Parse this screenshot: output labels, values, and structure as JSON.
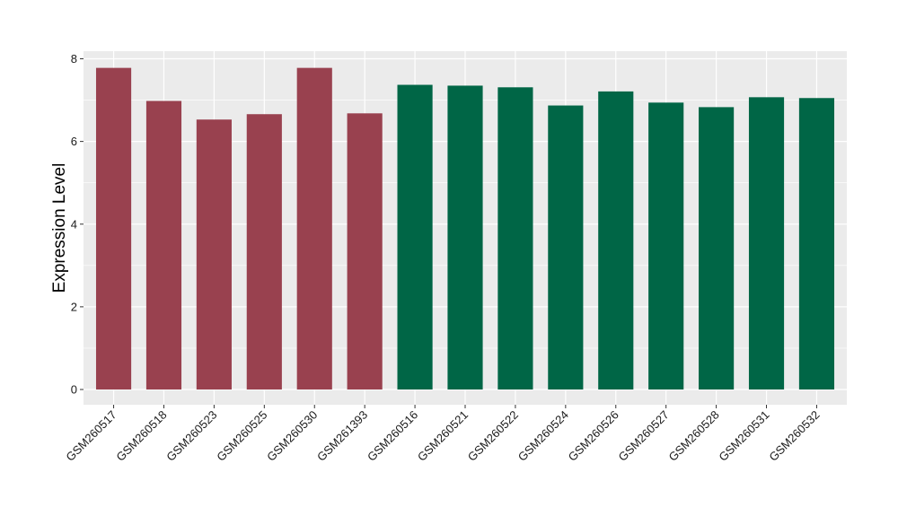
{
  "chart_data": {
    "type": "bar",
    "title": "",
    "xlabel": "",
    "ylabel": "Expression Level",
    "ylim": [
      0,
      8
    ],
    "yticks": [
      0,
      2,
      4,
      6,
      8
    ],
    "grid": true,
    "legend": "none",
    "categories": [
      "GSM260517",
      "GSM260518",
      "GSM260523",
      "GSM260525",
      "GSM260530",
      "GSM261393",
      "GSM260516",
      "GSM260521",
      "GSM260522",
      "GSM260524",
      "GSM260526",
      "GSM260527",
      "GSM260528",
      "GSM260531",
      "GSM260532"
    ],
    "values": [
      7.78,
      6.98,
      6.53,
      6.66,
      7.78,
      6.68,
      7.37,
      7.35,
      7.31,
      6.87,
      7.21,
      6.94,
      6.83,
      7.07,
      7.05
    ],
    "group": [
      "a",
      "a",
      "a",
      "a",
      "a",
      "a",
      "b",
      "b",
      "b",
      "b",
      "b",
      "b",
      "b",
      "b",
      "b"
    ],
    "colors": {
      "a": "#99414f",
      "b": "#006646"
    },
    "panel_background": "#ebebeb",
    "grid_color": "#ffffff"
  }
}
